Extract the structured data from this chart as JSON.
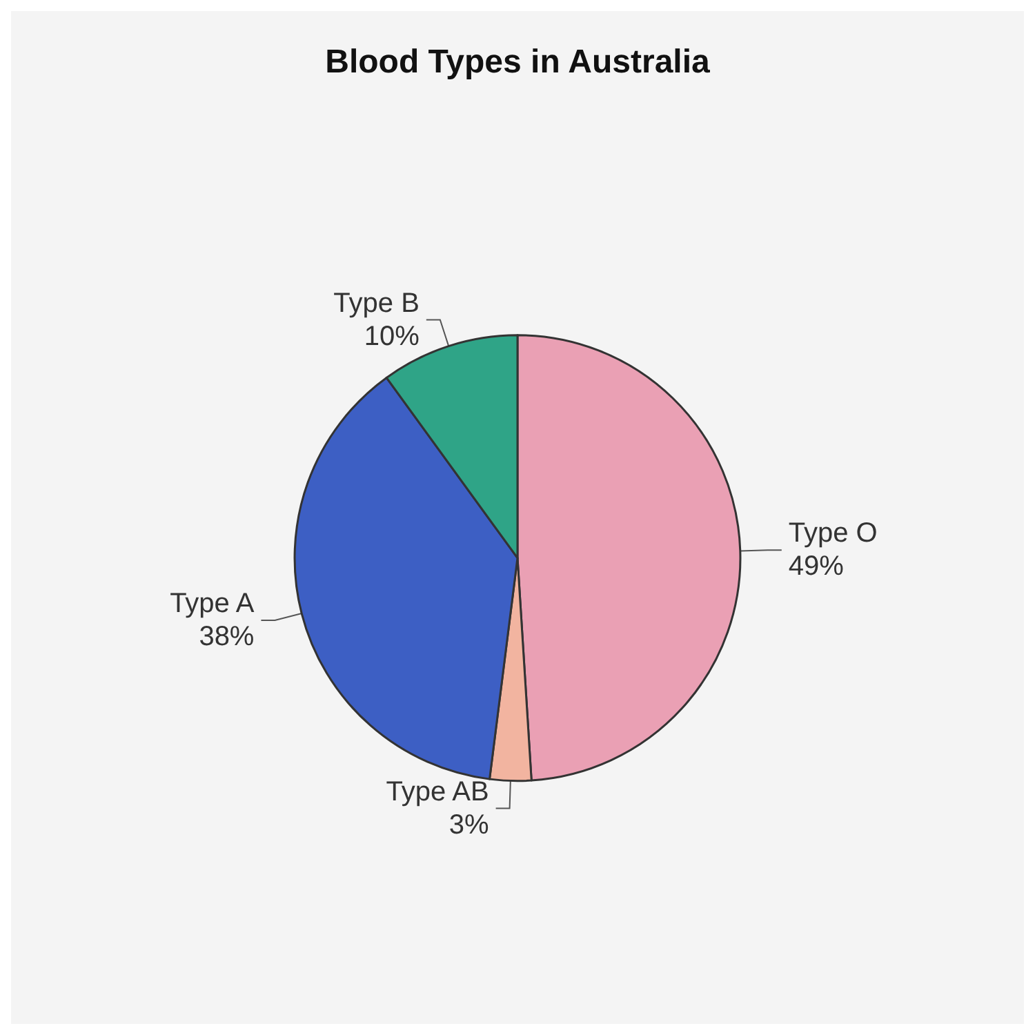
{
  "chart_data": {
    "type": "pie",
    "title": "Blood Types in Australia",
    "categories": [
      "Type O",
      "Type AB",
      "Type A",
      "Type B"
    ],
    "values": [
      49,
      3,
      38,
      10
    ],
    "colors": [
      "#eaa0b4",
      "#f2b4a0",
      "#3d5fc4",
      "#2fa487"
    ],
    "value_labels": [
      "49%",
      "3%",
      "38%",
      "10%"
    ]
  }
}
